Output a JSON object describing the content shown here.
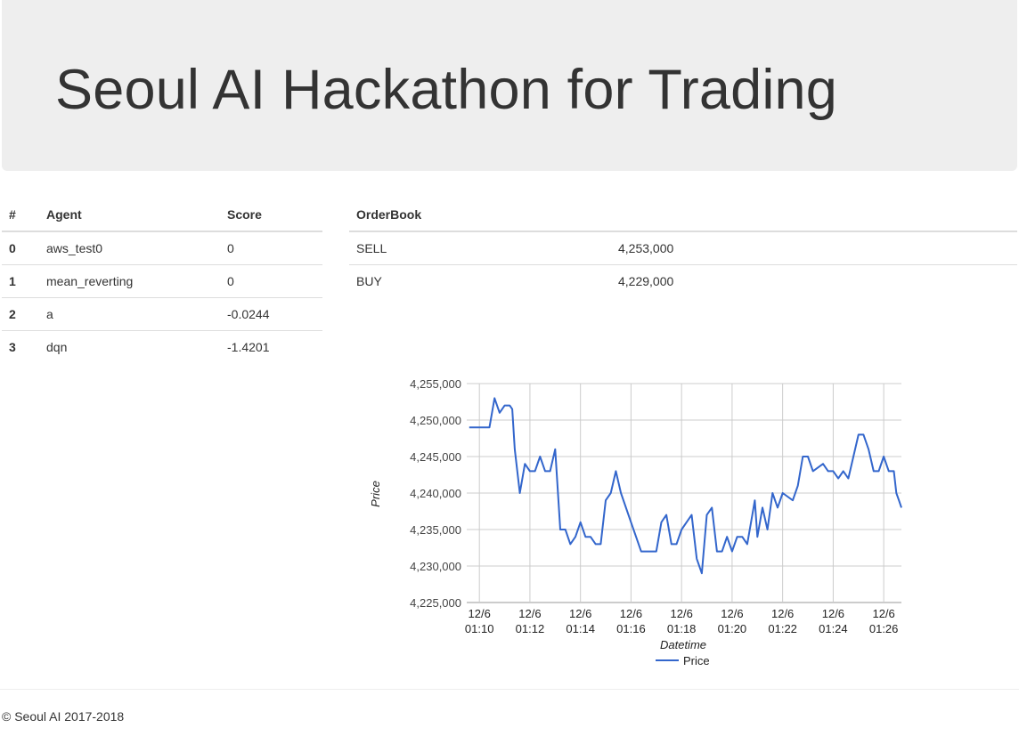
{
  "header": {
    "title": "Seoul AI Hackathon for Trading"
  },
  "agents_table": {
    "headers": [
      "#",
      "Agent",
      "Score"
    ],
    "rows": [
      {
        "idx": "0",
        "agent": "aws_test0",
        "score": "0"
      },
      {
        "idx": "1",
        "agent": "mean_reverting",
        "score": "0"
      },
      {
        "idx": "2",
        "agent": "a",
        "score": "-0.0244"
      },
      {
        "idx": "3",
        "agent": "dqn",
        "score": "-1.4201"
      }
    ]
  },
  "orderbook": {
    "header": "OrderBook",
    "rows": [
      {
        "side": "SELL",
        "price": "4,253,000"
      },
      {
        "side": "BUY",
        "price": "4,229,000"
      }
    ]
  },
  "chart_data": {
    "type": "line",
    "xlabel": "Datetime",
    "ylabel": "Price",
    "ylim": [
      4225000,
      4255000
    ],
    "yticks": [
      "4,255,000",
      "4,250,000",
      "4,245,000",
      "4,240,000",
      "4,235,000",
      "4,230,000",
      "4,225,000"
    ],
    "xlim": [
      "01:09.5",
      "01:26.7"
    ],
    "xticks": [
      {
        "date": "12/6",
        "time": "01:10"
      },
      {
        "date": "12/6",
        "time": "01:12"
      },
      {
        "date": "12/6",
        "time": "01:14"
      },
      {
        "date": "12/6",
        "time": "01:16"
      },
      {
        "date": "12/6",
        "time": "01:18"
      },
      {
        "date": "12/6",
        "time": "01:20"
      },
      {
        "date": "12/6",
        "time": "01:22"
      },
      {
        "date": "12/6",
        "time": "01:24"
      },
      {
        "date": "12/6",
        "time": "01:26"
      }
    ],
    "grid": true,
    "legend": "bottom",
    "color": "#3366cc",
    "series": [
      {
        "name": "Price",
        "x": [
          "01:09.6",
          "01:10.0",
          "01:10.4",
          "01:10.6",
          "01:10.8",
          "01:11.0",
          "01:11.2",
          "01:11.3",
          "01:11.4",
          "01:11.6",
          "01:11.8",
          "01:12.0",
          "01:12.2",
          "01:12.4",
          "01:12.6",
          "01:12.8",
          "01:13.0",
          "01:13.2",
          "01:13.4",
          "01:13.6",
          "01:13.8",
          "01:14.0",
          "01:14.2",
          "01:14.4",
          "01:14.6",
          "01:14.8",
          "01:15.0",
          "01:15.2",
          "01:15.4",
          "01:15.6",
          "01:16.0",
          "01:16.4",
          "01:16.6",
          "01:16.9",
          "01:17.0",
          "01:17.2",
          "01:17.4",
          "01:17.6",
          "01:17.8",
          "01:18.0",
          "01:18.2",
          "01:18.4",
          "01:18.6",
          "01:18.8",
          "01:19.0",
          "01:19.2",
          "01:19.4",
          "01:19.6",
          "01:19.8",
          "01:20.0",
          "01:20.2",
          "01:20.4",
          "01:20.6",
          "01:20.8",
          "01:20.9",
          "01:21.0",
          "01:21.2",
          "01:21.4",
          "01:21.6",
          "01:21.8",
          "01:22.0",
          "01:22.4",
          "01:22.6",
          "01:22.8",
          "01:23.0",
          "01:23.2",
          "01:23.6",
          "01:23.8",
          "01:24.0",
          "01:24.2",
          "01:24.4",
          "01:24.6",
          "01:24.8",
          "01:25.0",
          "01:25.2",
          "01:25.4",
          "01:25.6",
          "01:25.8",
          "01:26.0",
          "01:26.2",
          "01:26.4",
          "01:26.5",
          "01:26.6",
          "01:26.7"
        ],
        "values": [
          4249000,
          4249000,
          4249000,
          4253000,
          4251000,
          4252000,
          4252000,
          4251500,
          4246000,
          4240000,
          4244000,
          4243000,
          4243000,
          4245000,
          4243000,
          4243000,
          4246000,
          4235000,
          4235000,
          4233000,
          4234000,
          4236000,
          4234000,
          4234000,
          4233000,
          4233000,
          4239000,
          4240000,
          4243000,
          4240000,
          4236000,
          4232000,
          4232000,
          4232000,
          4232000,
          4236000,
          4237000,
          4233000,
          4233000,
          4235000,
          4236000,
          4237000,
          4231000,
          4229000,
          4237000,
          4238000,
          4232000,
          4232000,
          4234000,
          4232000,
          4234000,
          4234000,
          4233000,
          4237000,
          4239000,
          4234000,
          4238000,
          4235000,
          4240000,
          4238000,
          4240000,
          4239000,
          4241000,
          4245000,
          4245000,
          4243000,
          4244000,
          4243000,
          4243000,
          4242000,
          4243000,
          4242000,
          4245000,
          4248000,
          4248000,
          4246000,
          4243000,
          4243000,
          4245000,
          4243000,
          4243000,
          4240000,
          4239000,
          4238000
        ]
      }
    ]
  },
  "footer": {
    "text": "© Seoul AI 2017-2018"
  }
}
